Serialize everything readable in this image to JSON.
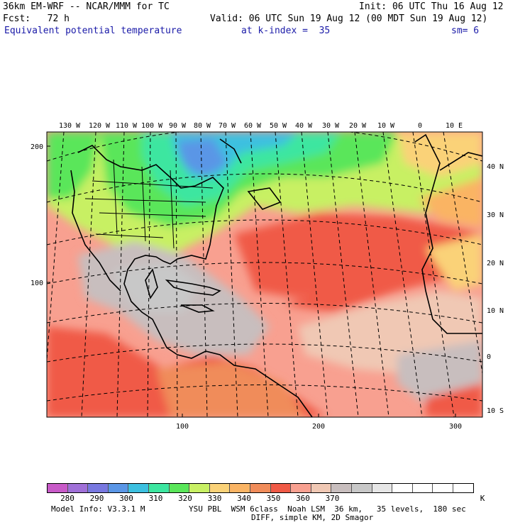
{
  "header": {
    "model_line": "36km EM-WRF -- NCAR/MMM for TC",
    "init": "Init: 06 UTC Thu 16 Aug 12",
    "fcst": "Fcst:   72 h",
    "valid": "Valid: 06 UTC Sun 19 Aug 12 (00 MDT Sun 19 Aug 12)",
    "field": "Equivalent potential temperature",
    "kindex": "at k-index =  35",
    "sm": "sm= 6"
  },
  "map": {
    "lon_labels": [
      "130 W",
      "120 W",
      "110 W",
      "100 W",
      "90 W",
      "80 W",
      "70 W",
      "60 W",
      "50 W",
      "40 W",
      "30 W",
      "20 W",
      "10 W",
      "0",
      "10 E"
    ],
    "lat_labels": [
      "40 N",
      "30 N",
      "20 N",
      "10 N",
      "0",
      "10 S"
    ],
    "grid_x_labels": [
      "100",
      "200",
      "300"
    ],
    "grid_y_labels": [
      "200",
      "100"
    ]
  },
  "colorbar": {
    "colors": [
      "#c85ac8",
      "#a070d8",
      "#7878e0",
      "#5a96e6",
      "#3cc0e0",
      "#3ce6a0",
      "#5ae65a",
      "#c8f064",
      "#fad278",
      "#fab464",
      "#f08c5a",
      "#f05a46",
      "#f8a090",
      "#f0c8b4",
      "#c8bebe",
      "#c8c8c8",
      "#e6e6e6",
      "#ffffff",
      "#ffffff",
      "#ffffff",
      "#ffffff"
    ],
    "labels": [
      "280",
      "290",
      "300",
      "310",
      "320",
      "330",
      "340",
      "350",
      "360",
      "370"
    ],
    "unit": "K"
  },
  "footer": {
    "line1": "Model Info: V3.3.1 M",
    "line1b": "YSU PBL  WSM 6class  Noah LSM  36 km,   35 levels,  180 sec",
    "line2": "DIFF, simple KM, 2D Smagor"
  }
}
